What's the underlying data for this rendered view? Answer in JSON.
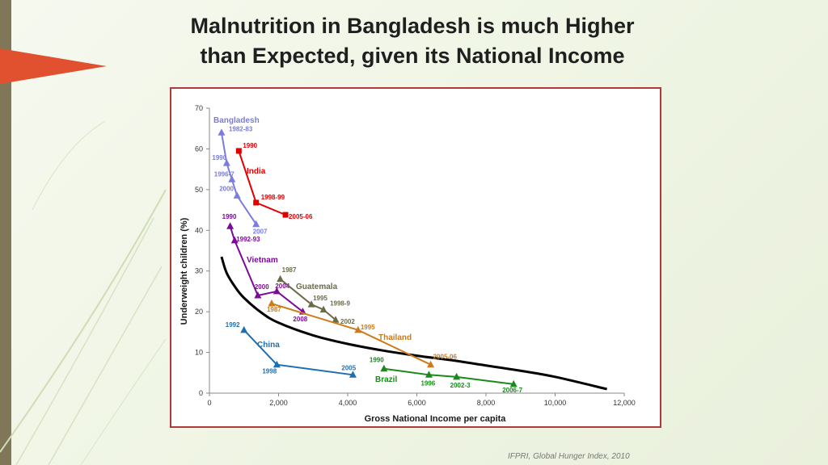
{
  "slide": {
    "title_line1": "Malnutrition in Bangladesh is much Higher",
    "title_line2": "than Expected, given its National Income",
    "source": "IFPRI, Global Hunger Index, 2010"
  },
  "chart_data": {
    "type": "line",
    "xlabel": "Gross National Income per capita",
    "ylabel": "Underweight children (%)",
    "xlim": [
      0,
      12000
    ],
    "ylim": [
      0,
      70
    ],
    "x_ticks": [
      0,
      2000,
      4000,
      6000,
      8000,
      10000,
      12000
    ],
    "x_tick_labels": [
      "0",
      "2,000",
      "4,000",
      "6,000",
      "8,000",
      "10,000",
      "12,000"
    ],
    "y_ticks": [
      0,
      10,
      20,
      30,
      40,
      50,
      60,
      70
    ],
    "y_tick_labels": [
      "0",
      "10",
      "20",
      "30",
      "40",
      "50",
      "60",
      "70"
    ],
    "grid": false,
    "trend_curve": {
      "color": "#000000",
      "points": [
        [
          350,
          33.5
        ],
        [
          500,
          29.5
        ],
        [
          750,
          26
        ],
        [
          1000,
          23.4
        ],
        [
          1500,
          19.8
        ],
        [
          2000,
          17.3
        ],
        [
          3000,
          14.2
        ],
        [
          4000,
          12.1
        ],
        [
          5000,
          10.5
        ],
        [
          6000,
          9.2
        ],
        [
          7000,
          8.1
        ],
        [
          8000,
          6.8
        ],
        [
          9000,
          5.5
        ],
        [
          10000,
          4
        ],
        [
          11500,
          1
        ]
      ]
    },
    "series": [
      {
        "name": "Bangladesh",
        "color": "#7b7be0",
        "marker": "triangle",
        "points": [
          {
            "x": 350,
            "y": 64,
            "label": "1982-83"
          },
          {
            "x": 500,
            "y": 56.5,
            "label": "1990"
          },
          {
            "x": 650,
            "y": 52.5,
            "label": "1996-7"
          },
          {
            "x": 800,
            "y": 48.5,
            "label": "2000"
          },
          {
            "x": 1350,
            "y": 41.5,
            "label": "2007"
          }
        ]
      },
      {
        "name": "India",
        "color": "#e00000",
        "marker": "square",
        "points": [
          {
            "x": 850,
            "y": 59.5,
            "label": "1990"
          },
          {
            "x": 1350,
            "y": 46.8,
            "label": "1998-99"
          },
          {
            "x": 2200,
            "y": 43.8,
            "label": "2005-06"
          }
        ]
      },
      {
        "name": "Vietnam",
        "color": "#7b0a99",
        "marker": "triangle",
        "points": [
          {
            "x": 600,
            "y": 41,
            "label": "1990"
          },
          {
            "x": 730,
            "y": 37.5,
            "label": "1992-93"
          },
          {
            "x": 1400,
            "y": 24,
            "label": "2000"
          },
          {
            "x": 1950,
            "y": 25,
            "label": "2004"
          },
          {
            "x": 2700,
            "y": 20,
            "label": "2008"
          }
        ]
      },
      {
        "name": "Guatemala",
        "color": "#6b6b4a",
        "marker": "triangle",
        "points": [
          {
            "x": 2050,
            "y": 28,
            "label": "1987"
          },
          {
            "x": 2950,
            "y": 21.8,
            "label": "1995"
          },
          {
            "x": 3300,
            "y": 20.5,
            "label": "1998-9"
          },
          {
            "x": 3650,
            "y": 18,
            "label": "2002"
          }
        ]
      },
      {
        "name": "Thailand",
        "color": "#cc7a1a",
        "marker": "triangle",
        "points": [
          {
            "x": 1800,
            "y": 22,
            "label": "1987"
          },
          {
            "x": 4300,
            "y": 15.5,
            "label": "1995"
          },
          {
            "x": 6400,
            "y": 7,
            "label": "2005-06"
          }
        ]
      },
      {
        "name": "China",
        "color": "#1f6fb0",
        "marker": "triangle",
        "points": [
          {
            "x": 1000,
            "y": 15.5,
            "label": "1992"
          },
          {
            "x": 1950,
            "y": 7,
            "label": "1998"
          },
          {
            "x": 4150,
            "y": 4.5,
            "label": "2005"
          }
        ]
      },
      {
        "name": "Brazil",
        "color": "#1a8a1a",
        "marker": "triangle",
        "points": [
          {
            "x": 5050,
            "y": 6,
            "label": "1990"
          },
          {
            "x": 6350,
            "y": 4.5,
            "label": "1996"
          },
          {
            "x": 7150,
            "y": 4,
            "label": "2002-3"
          },
          {
            "x": 8800,
            "y": 2.2,
            "label": "2006-7"
          }
        ]
      }
    ]
  }
}
